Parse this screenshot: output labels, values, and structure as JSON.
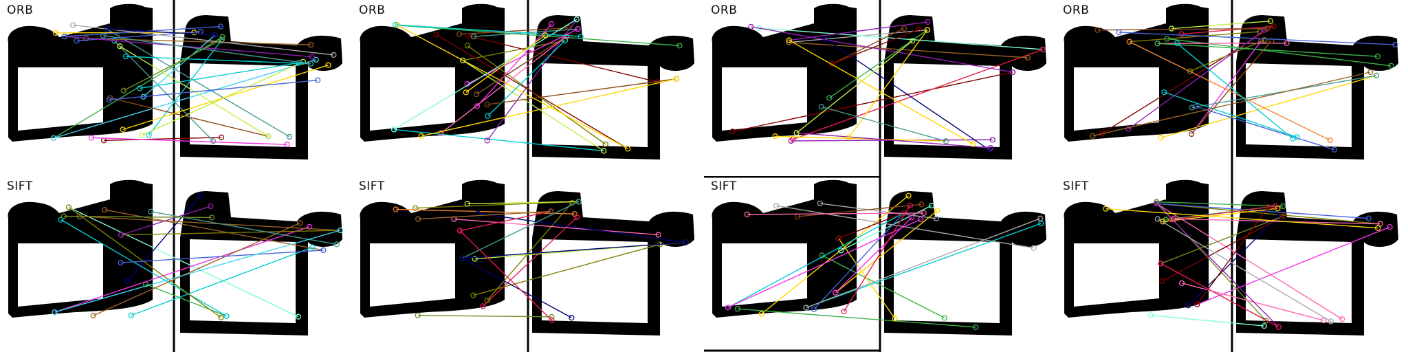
{
  "rows": [
    {
      "label": "ORB"
    },
    {
      "label": "SIFT"
    }
  ],
  "columns": 4,
  "colors": {
    "shape": "#000000",
    "background": "#ffffff",
    "divider": "#000000",
    "palette": [
      "#e6194b",
      "#3cb44b",
      "#4363d8",
      "#f58231",
      "#911eb4",
      "#42d4f4",
      "#f032e6",
      "#bfef45",
      "#469990",
      "#9a6324",
      "#800000",
      "#808000",
      "#000075",
      "#a9a9a9",
      "#ffd700",
      "#8b4513",
      "#7fffd4",
      "#ff69b4",
      "#6b8e23",
      "#00ced1"
    ]
  },
  "panels": [
    {
      "row": 0,
      "col": 0,
      "matches": 24
    },
    {
      "row": 0,
      "col": 1,
      "matches": 22
    },
    {
      "row": 0,
      "col": 2,
      "matches": 18
    },
    {
      "row": 0,
      "col": 3,
      "matches": 20
    },
    {
      "row": 1,
      "col": 0,
      "matches": 16
    },
    {
      "row": 1,
      "col": 1,
      "matches": 16
    },
    {
      "row": 1,
      "col": 2,
      "matches": 18
    },
    {
      "row": 1,
      "col": 3,
      "matches": 20
    }
  ]
}
